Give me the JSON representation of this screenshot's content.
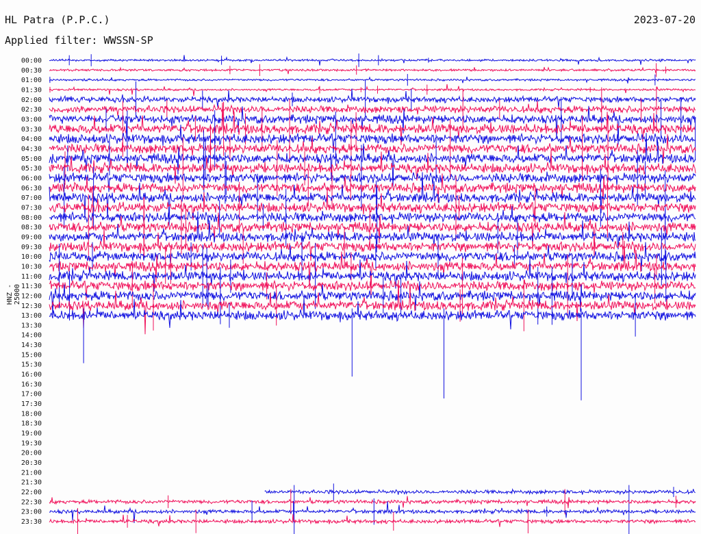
{
  "header": {
    "station": "HL Patra (P.P.C.)",
    "date": "2023-07-20",
    "filter": "Applied filter: WWSSN-SP"
  },
  "chart_data": {
    "type": "line",
    "ylabel": "HNZ - 25000",
    "tick_labels": [
      "00:00",
      "00:30",
      "01:00",
      "01:30",
      "02:00",
      "02:30",
      "03:00",
      "03:30",
      "04:00",
      "04:30",
      "05:00",
      "05:30",
      "06:00",
      "06:30",
      "07:00",
      "07:30",
      "08:00",
      "08:30",
      "09:00",
      "09:30",
      "10:00",
      "10:30",
      "11:00",
      "11:30",
      "12:00",
      "12:30",
      "13:00",
      "13:30",
      "14:00",
      "14:30",
      "15:00",
      "15:30",
      "16:00",
      "16:30",
      "17:00",
      "17:30",
      "18:00",
      "18:30",
      "19:00",
      "19:30",
      "20:00",
      "20:30",
      "21:00",
      "21:30",
      "22:00",
      "22:30",
      "23:00",
      "23:30"
    ],
    "series_colors": [
      "#1010e0",
      "#f0105a"
    ],
    "coverage_minutes": [
      [
        0,
        810
      ],
      [
        1330,
        1440
      ]
    ]
  }
}
